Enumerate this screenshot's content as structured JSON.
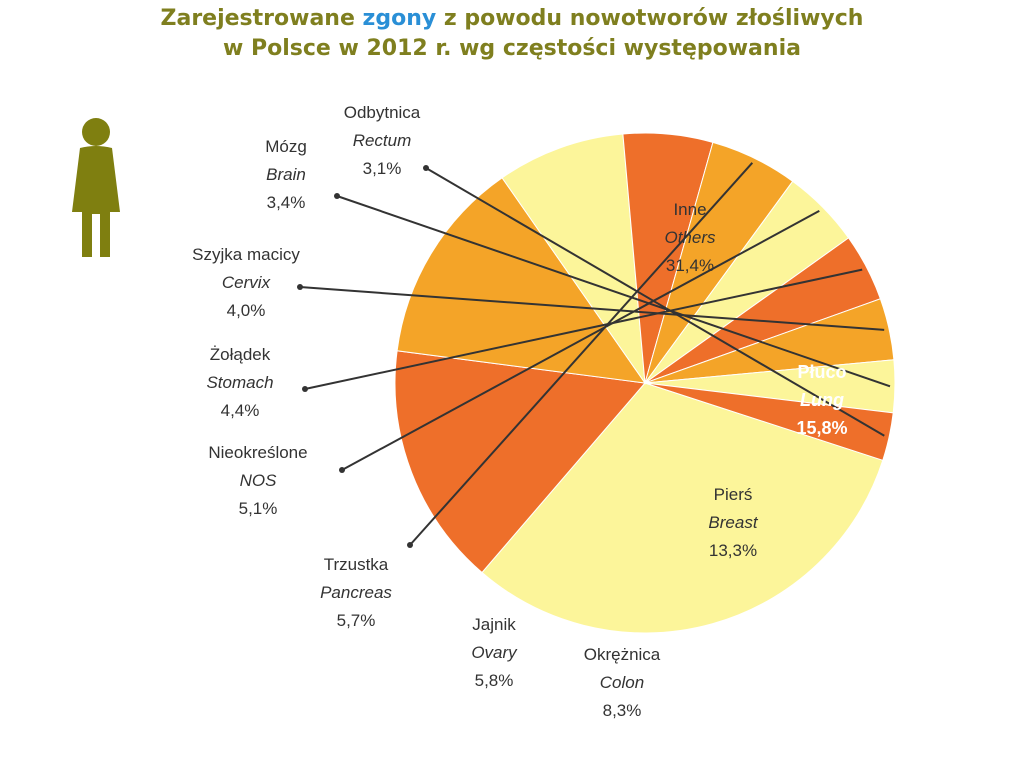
{
  "title": {
    "line1_pre": "Zarejestrowane ",
    "line1_highlight": "zgony",
    "line1_post": " z powodu nowotworów złośliwych",
    "line2": "w Polsce w 2012 r. wg częstości występowania"
  },
  "colors": {
    "title": "#7f7f1f",
    "highlight": "#2a8fd6",
    "icon": "#7f7f10",
    "slice_pale": "#fcf59a",
    "slice_orange": "#f4a428",
    "slice_dark": "#ee6f2a"
  },
  "icon": "female-figure-icon",
  "chart_data": {
    "type": "pie",
    "slices": [
      {
        "label_pl": "Inne",
        "label_en": "Others",
        "value": 31.4,
        "display": "31,4%",
        "color": "#fcf59a"
      },
      {
        "label_pl": "Płuco",
        "label_en": "Lung",
        "value": 15.8,
        "display": "15,8%",
        "color": "#ee6f2a"
      },
      {
        "label_pl": "Pierś",
        "label_en": "Breast",
        "value": 13.3,
        "display": "13,3%",
        "color": "#f4a428"
      },
      {
        "label_pl": "Okrężnica",
        "label_en": "Colon",
        "value": 8.3,
        "display": "8,3%",
        "color": "#fcf59a"
      },
      {
        "label_pl": "Jajnik",
        "label_en": "Ovary",
        "value": 5.8,
        "display": "5,8%",
        "color": "#ee6f2a"
      },
      {
        "label_pl": "Trzustka",
        "label_en": "Pancreas",
        "value": 5.7,
        "display": "5,7%",
        "color": "#f4a428"
      },
      {
        "label_pl": "Nieokreślone",
        "label_en": "NOS",
        "value": 5.1,
        "display": "5,1%",
        "color": "#fcf59a"
      },
      {
        "label_pl": "Żołądek",
        "label_en": "Stomach",
        "value": 4.4,
        "display": "4,4%",
        "color": "#ee6f2a"
      },
      {
        "label_pl": "Szyjka macicy",
        "label_en": "Cervix",
        "value": 4.0,
        "display": "4,0%",
        "color": "#f4a428"
      },
      {
        "label_pl": "Mózg",
        "label_en": "Brain",
        "value": 3.4,
        "display": "3,4%",
        "color": "#fcf59a"
      },
      {
        "label_pl": "Odbytnica",
        "label_en": "Rectum",
        "value": 3.1,
        "display": "3,1%",
        "color": "#ee6f2a"
      }
    ]
  }
}
